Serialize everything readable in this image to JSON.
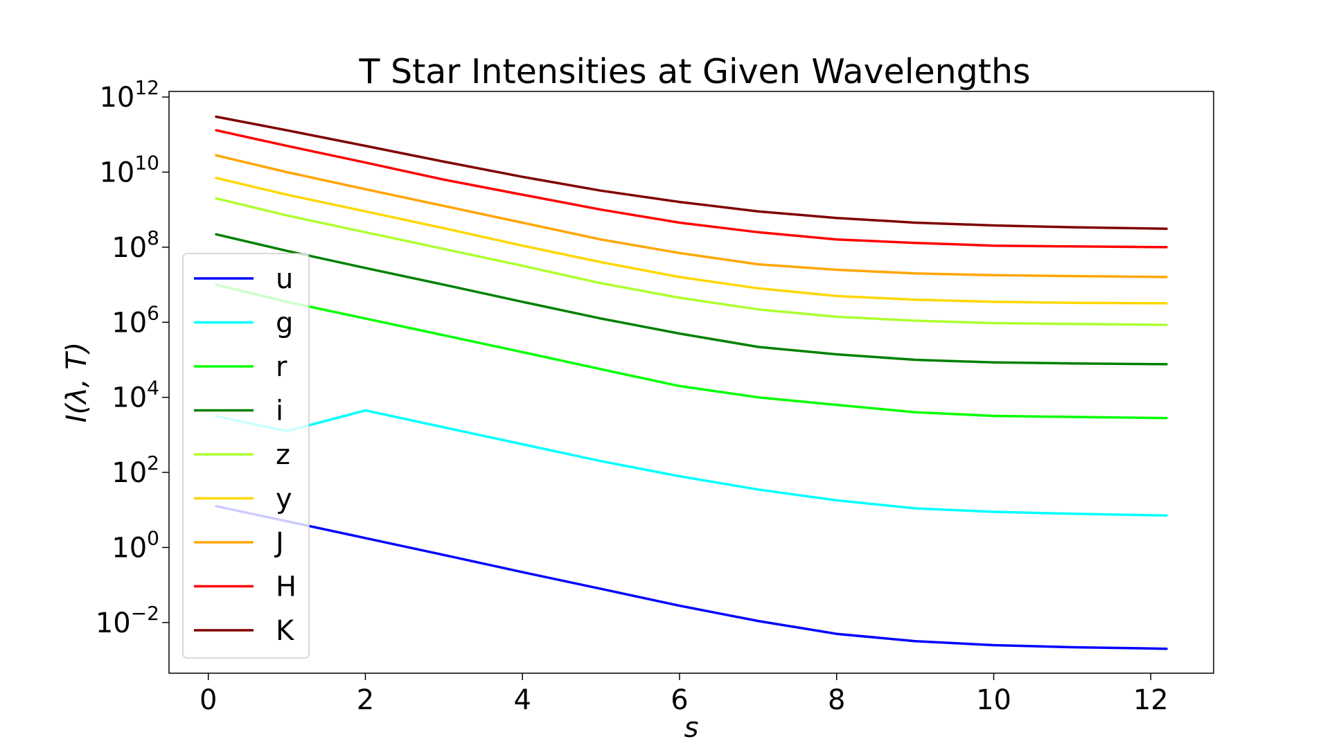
{
  "chart_data": {
    "type": "line",
    "title": "T Star Intensities at Given Wavelengths",
    "xlabel": "s",
    "ylabel": "I(λ, T)",
    "xlim": [
      -0.5,
      12.8
    ],
    "ylim_log10": [
      -3.35,
      12.15
    ],
    "yscale": "log",
    "grid": false,
    "legend_position": "center-left",
    "xticks": [
      {
        "value": 0,
        "label": "0"
      },
      {
        "value": 2,
        "label": "2"
      },
      {
        "value": 4,
        "label": "4"
      },
      {
        "value": 6,
        "label": "6"
      },
      {
        "value": 8,
        "label": "8"
      },
      {
        "value": 10,
        "label": "10"
      },
      {
        "value": 12,
        "label": "12"
      }
    ],
    "yticks": [
      {
        "exp": -2,
        "base": "10",
        "sup": "−2"
      },
      {
        "exp": 0,
        "base": "10",
        "sup": "0"
      },
      {
        "exp": 2,
        "base": "10",
        "sup": "2"
      },
      {
        "exp": 4,
        "base": "10",
        "sup": "4"
      },
      {
        "exp": 6,
        "base": "10",
        "sup": "6"
      },
      {
        "exp": 8,
        "base": "10",
        "sup": "8"
      },
      {
        "exp": 10,
        "base": "10",
        "sup": "10"
      },
      {
        "exp": 12,
        "base": "10",
        "sup": "12"
      }
    ],
    "x": [
      0.1,
      1,
      2,
      3,
      4,
      5,
      6,
      7,
      8,
      9,
      10,
      11,
      12.2
    ],
    "series": [
      {
        "name": "u",
        "color": "#0000ff",
        "values": [
          12.6,
          5.0,
          1.78,
          0.63,
          0.22,
          0.079,
          0.028,
          0.011,
          0.005,
          0.0032,
          0.0025,
          0.0022,
          0.002
        ]
      },
      {
        "name": "g",
        "color": "#00ffff",
        "values": [
          3162,
          1259,
          4467,
          1585,
          562,
          200,
          79,
          35,
          18,
          11,
          8.9,
          7.9,
          7.1
        ]
      },
      {
        "name": "r",
        "color": "#00ff00",
        "values": [
          10000000.0,
          3500000.0,
          1260000.0,
          450000.0,
          160000.0,
          56000.0,
          20000.0,
          10000.0,
          6300.0,
          4000.0,
          3200.0,
          3000.0,
          2800.0
        ]
      },
      {
        "name": "i",
        "color": "#008000",
        "values": [
          220000000.0,
          80000000.0,
          28000000.0,
          10000000.0,
          3500000.0,
          1260000.0,
          500000.0,
          220000.0,
          140000.0,
          100000.0,
          85000.0,
          80000.0,
          76000.0
        ]
      },
      {
        "name": "z",
        "color": "#adff2f",
        "values": [
          2000000000.0,
          700000000.0,
          250000000.0,
          90000000.0,
          32000000.0,
          11000000.0,
          4500000.0,
          2200000.0,
          1400000.0,
          1100000.0,
          950000.0,
          900000.0,
          850000.0
        ]
      },
      {
        "name": "y",
        "color": "#ffd700",
        "values": [
          7000000000.0,
          2500000000.0,
          900000000.0,
          320000000.0,
          110000000.0,
          40000000.0,
          16000000.0,
          8000000.0,
          5000000.0,
          4000000.0,
          3500000.0,
          3300000.0,
          3200000.0
        ]
      },
      {
        "name": "J",
        "color": "#ffa500",
        "values": [
          28000000000.0,
          10000000000.0,
          3500000000.0,
          1260000000.0,
          450000000.0,
          160000000.0,
          70000000.0,
          35000000.0,
          25000000.0,
          20000000.0,
          18000000.0,
          17000000.0,
          16000000.0
        ]
      },
      {
        "name": "H",
        "color": "#ff0000",
        "values": [
          130000000000.0,
          50000000000.0,
          18000000000.0,
          6300000000.0,
          2500000000.0,
          1000000000.0,
          450000000.0,
          250000000.0,
          160000000.0,
          130000000.0,
          110000000.0,
          105000000.0,
          100000000.0
        ]
      },
      {
        "name": "K",
        "color": "#800000",
        "values": [
          300000000000.0,
          130000000000.0,
          50000000000.0,
          19000000000.0,
          7500000000.0,
          3200000000.0,
          1600000000.0,
          900000000.0,
          600000000.0,
          450000000.0,
          380000000.0,
          340000000.0,
          310000000.0
        ]
      }
    ]
  }
}
